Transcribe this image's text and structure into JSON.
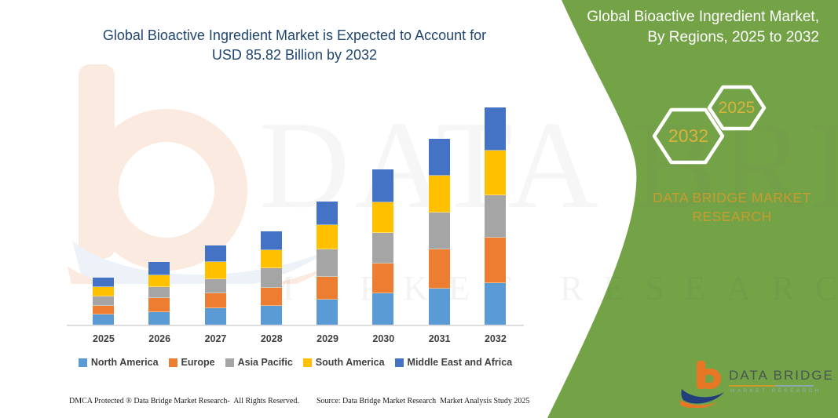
{
  "title": {
    "line1": "Global Bioactive Ingredient Market is Expected to Account for",
    "line2": "USD 85.82 Billion by 2032"
  },
  "side_panel": {
    "heading_line1": "Global Bioactive Ingredient Market,",
    "heading_line2": "By Regions, 2025 to 2032",
    "hexagons": [
      {
        "label": "2032"
      },
      {
        "label": "2025"
      }
    ],
    "brand_text": "DATA BRIDGE MARKET RESEARCH",
    "bg_color": "#74A347",
    "accent_gold": "#D9B33C"
  },
  "watermark": {
    "line1": "DATA BRIDGE",
    "line2": "MARKET RESEARCH"
  },
  "logo": {
    "name": "DATA BRIDGE",
    "subtext": "MARKET RESEARCH",
    "b_orange": "#E87725",
    "swoosh_blue": "#223E7C"
  },
  "footer": {
    "left": "DMCA Protected ® Data Bridge Market Research-  All Rights Reserved.",
    "right": "Source: Data Bridge Market Research  Market Analysis Study 2025"
  },
  "chart_data": {
    "type": "bar",
    "stacked": true,
    "title": "Global Bioactive Ingredient Market is Expected to Account for USD 85.82 Billion by 2032",
    "unit": "USD Billion",
    "categories": [
      "2025",
      "2026",
      "2027",
      "2028",
      "2029",
      "2030",
      "2031",
      "2032"
    ],
    "series": [
      {
        "name": "North America",
        "color": "#5B9BD5",
        "values": [
          4.4,
          5.3,
          6.7,
          7.7,
          10.3,
          12.7,
          14.4,
          16.8
        ]
      },
      {
        "name": "Europe",
        "color": "#ED7D31",
        "values": [
          3.3,
          5.5,
          5.9,
          7.0,
          8.7,
          11.8,
          15.4,
          17.7
        ]
      },
      {
        "name": "Asia Pacific",
        "color": "#A5A5A5",
        "values": [
          3.6,
          4.3,
          5.7,
          7.9,
          10.8,
          12.1,
          14.7,
          16.8
        ]
      },
      {
        "name": "South America",
        "color": "#FFC000",
        "values": [
          3.8,
          4.7,
          6.7,
          6.9,
          9.6,
          12.0,
          14.4,
          17.5
        ]
      },
      {
        "name": "Middle East and Africa",
        "color": "#4472C4",
        "values": [
          3.7,
          5.2,
          6.5,
          7.7,
          9.5,
          12.9,
          14.7,
          17.0
        ]
      }
    ],
    "totals": [
      18.8,
      25.0,
      31.5,
      37.2,
      48.9,
      61.5,
      73.6,
      85.82
    ],
    "ylim": [
      0,
      90
    ],
    "xlabel": "",
    "ylabel": "",
    "grid": false,
    "legend_position": "bottom"
  }
}
